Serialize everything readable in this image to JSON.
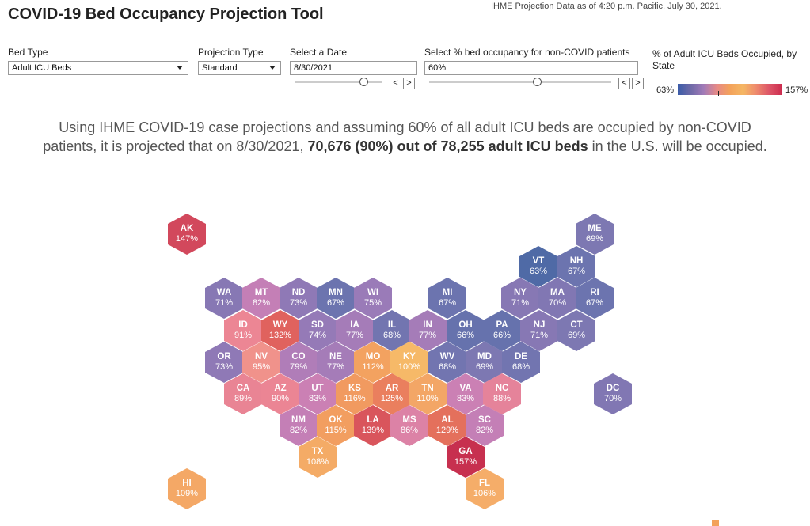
{
  "header": {
    "title": "COVID-19 Bed Occupancy Projection Tool",
    "as_of": "IHME Projection Data as of 4:20 p.m. Pacific, July 30, 2021."
  },
  "controls": {
    "bed_type": {
      "label": "Bed Type",
      "value": "Adult ICU Beds"
    },
    "projection_type": {
      "label": "Projection Type",
      "value": "Standard"
    },
    "date": {
      "label": "Select a Date",
      "value": "8/30/2021",
      "slider_position": 0.83
    },
    "non_covid": {
      "label": "Select % bed occupancy for non-COVID patients",
      "value": "60%",
      "slider_position": 0.6
    },
    "prev_glyph": "<",
    "next_glyph": ">"
  },
  "legend": {
    "title": "% of Adult ICU Beds Occupied, by State",
    "min": "63%",
    "max": "157%",
    "colors": [
      "#3b5ca8",
      "#6f6aa8",
      "#a27bb8",
      "#e78a86",
      "#f3a25b",
      "#f5b764",
      "#ee8a6d",
      "#dd5567",
      "#cc2b4e"
    ]
  },
  "summary": {
    "line1": "Using IHME COVID-19 case projections and assuming 60% of all adult ICU beds are occupied by non-COVID",
    "line2_pre": "patients, it is projected that on 8/30/2021, ",
    "line2_bold": "70,676 (90%) out of 78,255 adult ICU beds",
    "line2_post": " in the U.S. will be occupied."
  },
  "states": [
    {
      "abbr": "AK",
      "pct": "147%",
      "color": "#d2485c"
    },
    {
      "abbr": "ME",
      "pct": "69%",
      "color": "#7d78b2"
    },
    {
      "abbr": "VT",
      "pct": "63%",
      "color": "#4f6aa6"
    },
    {
      "abbr": "NH",
      "pct": "67%",
      "color": "#6c74af"
    },
    {
      "abbr": "WA",
      "pct": "71%",
      "color": "#8778b4"
    },
    {
      "abbr": "MT",
      "pct": "82%",
      "color": "#c47fb6"
    },
    {
      "abbr": "ND",
      "pct": "73%",
      "color": "#8f79b6"
    },
    {
      "abbr": "MN",
      "pct": "67%",
      "color": "#6c74af"
    },
    {
      "abbr": "WI",
      "pct": "75%",
      "color": "#9a7bb8"
    },
    {
      "abbr": "MI",
      "pct": "67%",
      "color": "#6c74af"
    },
    {
      "abbr": "NY",
      "pct": "71%",
      "color": "#8778b4"
    },
    {
      "abbr": "MA",
      "pct": "70%",
      "color": "#8177b3"
    },
    {
      "abbr": "RI",
      "pct": "67%",
      "color": "#6c74af"
    },
    {
      "abbr": "ID",
      "pct": "91%",
      "color": "#ec8694"
    },
    {
      "abbr": "WY",
      "pct": "132%",
      "color": "#e0625e"
    },
    {
      "abbr": "SD",
      "pct": "74%",
      "color": "#957ab7"
    },
    {
      "abbr": "IA",
      "pct": "77%",
      "color": "#a57cb8"
    },
    {
      "abbr": "IL",
      "pct": "68%",
      "color": "#7275b0"
    },
    {
      "abbr": "IN",
      "pct": "77%",
      "color": "#a57cb8"
    },
    {
      "abbr": "OH",
      "pct": "66%",
      "color": "#6672ad"
    },
    {
      "abbr": "PA",
      "pct": "66%",
      "color": "#6672ad"
    },
    {
      "abbr": "NJ",
      "pct": "71%",
      "color": "#8778b4"
    },
    {
      "abbr": "CT",
      "pct": "69%",
      "color": "#7d78b2"
    },
    {
      "abbr": "OR",
      "pct": "73%",
      "color": "#8f79b6"
    },
    {
      "abbr": "NV",
      "pct": "95%",
      "color": "#f0928b"
    },
    {
      "abbr": "CO",
      "pct": "79%",
      "color": "#b07db8"
    },
    {
      "abbr": "NE",
      "pct": "77%",
      "color": "#a57cb8"
    },
    {
      "abbr": "MO",
      "pct": "112%",
      "color": "#f3a260"
    },
    {
      "abbr": "KY",
      "pct": "100%",
      "color": "#f6b968"
    },
    {
      "abbr": "WV",
      "pct": "68%",
      "color": "#7275b0"
    },
    {
      "abbr": "MD",
      "pct": "69%",
      "color": "#7d78b2"
    },
    {
      "abbr": "DE",
      "pct": "68%",
      "color": "#7275b0"
    },
    {
      "abbr": "CA",
      "pct": "89%",
      "color": "#e98494"
    },
    {
      "abbr": "AZ",
      "pct": "90%",
      "color": "#eb8594"
    },
    {
      "abbr": "UT",
      "pct": "83%",
      "color": "#cb80b4"
    },
    {
      "abbr": "KS",
      "pct": "116%",
      "color": "#f19a60"
    },
    {
      "abbr": "AR",
      "pct": "125%",
      "color": "#ea7f5e"
    },
    {
      "abbr": "TN",
      "pct": "110%",
      "color": "#f3a666"
    },
    {
      "abbr": "VA",
      "pct": "83%",
      "color": "#cb80b4"
    },
    {
      "abbr": "NC",
      "pct": "88%",
      "color": "#e5839a"
    },
    {
      "abbr": "DC",
      "pct": "70%",
      "color": "#8177b3"
    },
    {
      "abbr": "NM",
      "pct": "82%",
      "color": "#c47fb6"
    },
    {
      "abbr": "OK",
      "pct": "115%",
      "color": "#f29e60"
    },
    {
      "abbr": "LA",
      "pct": "139%",
      "color": "#d9555c"
    },
    {
      "abbr": "MS",
      "pct": "86%",
      "color": "#dc82a6"
    },
    {
      "abbr": "AL",
      "pct": "129%",
      "color": "#e4705c"
    },
    {
      "abbr": "SC",
      "pct": "82%",
      "color": "#c47fb6"
    },
    {
      "abbr": "TX",
      "pct": "108%",
      "color": "#f4ab66"
    },
    {
      "abbr": "GA",
      "pct": "157%",
      "color": "#c7304f"
    },
    {
      "abbr": "HI",
      "pct": "109%",
      "color": "#f4a866"
    },
    {
      "abbr": "FL",
      "pct": "106%",
      "color": "#f5ad69"
    }
  ]
}
